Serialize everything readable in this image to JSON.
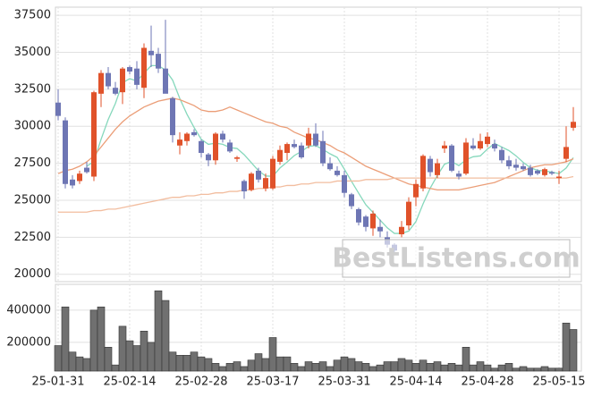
{
  "chart_data": [
    {
      "type": "candlestick",
      "open": [
        31600,
        30400,
        26400,
        26300,
        27200,
        26600,
        32200,
        33600,
        32600,
        32300,
        34000,
        33900,
        32600,
        35100,
        34900,
        33900,
        31900,
        28700,
        29000,
        29600,
        29000,
        28100,
        27700,
        29500,
        28900,
        27800,
        26300,
        25700,
        27000,
        25800,
        25800,
        27600,
        28200,
        28800,
        28700,
        28700,
        29500,
        29000,
        27500,
        27000,
        26700,
        25400,
        24400,
        23900,
        23100,
        23200,
        22500,
        22000,
        22700,
        23300,
        25200,
        25800,
        27800,
        26700,
        28500,
        28700,
        26800,
        26800,
        28700,
        28500,
        28800,
        28800,
        28400,
        27700,
        27400,
        27300,
        27200,
        27000,
        26700,
        26900,
        26500,
        27800,
        29900
      ],
      "high": [
        32500,
        30600,
        26700,
        27000,
        27600,
        32400,
        33800,
        34000,
        33000,
        34000,
        34100,
        34400,
        35600,
        36800,
        35300,
        37200,
        32000,
        29600,
        29600,
        29800,
        29100,
        28200,
        29600,
        29700,
        29100,
        28000,
        26400,
        26900,
        27200,
        26800,
        28000,
        28700,
        28900,
        29100,
        28900,
        29900,
        30200,
        29700,
        27900,
        27300,
        27000,
        25500,
        24500,
        24000,
        24300,
        23700,
        22900,
        22100,
        23600,
        25200,
        26400,
        28100,
        28000,
        27800,
        29000,
        28800,
        27000,
        29200,
        29200,
        29500,
        29600,
        29100,
        28600,
        28000,
        27800,
        27500,
        27400,
        27100,
        27200,
        27000,
        27000,
        30000,
        31300
      ],
      "low": [
        30400,
        25800,
        25800,
        26100,
        26800,
        26300,
        31300,
        32500,
        32100,
        31500,
        33500,
        32500,
        31900,
        34000,
        33600,
        32300,
        28900,
        28100,
        28700,
        29300,
        27900,
        27300,
        27400,
        28900,
        28200,
        27600,
        25100,
        25600,
        26200,
        25600,
        25700,
        27400,
        27700,
        28500,
        27800,
        28500,
        28600,
        27300,
        27000,
        26600,
        25200,
        24400,
        23300,
        22900,
        22600,
        22500,
        21800,
        21300,
        22500,
        23000,
        24600,
        25600,
        26600,
        26500,
        28200,
        26900,
        26400,
        26700,
        28400,
        28400,
        28600,
        28300,
        27500,
        27100,
        27000,
        27000,
        26600,
        26700,
        26600,
        26700,
        26100,
        27600,
        29700
      ],
      "close": [
        30700,
        26100,
        26000,
        26800,
        26900,
        32300,
        33600,
        32700,
        32200,
        33900,
        33700,
        32800,
        35300,
        34800,
        33900,
        32200,
        29400,
        29100,
        29500,
        29400,
        28200,
        27700,
        29500,
        29100,
        28300,
        27900,
        25600,
        26800,
        26400,
        26500,
        27800,
        28400,
        28800,
        28600,
        27900,
        29500,
        28700,
        27500,
        27100,
        26700,
        25500,
        24600,
        23500,
        23200,
        24100,
        22900,
        22000,
        21600,
        23200,
        24900,
        26100,
        28000,
        26900,
        27500,
        28700,
        27000,
        26600,
        28900,
        28500,
        29000,
        29300,
        28500,
        27700,
        27300,
        27200,
        27100,
        26700,
        26800,
        27100,
        26800,
        26600,
        28600,
        30300
      ],
      "up_color": "#e0522a",
      "down_color": "#6e76b4",
      "series": [
        {
          "color": "#86d8bc",
          "values": [
            null,
            null,
            null,
            null,
            27300,
            27620,
            29120,
            30460,
            31540,
            32940,
            33220,
            33060,
            33580,
            34100,
            34100,
            33800,
            33120,
            31880,
            30820,
            29920,
            29120,
            28780,
            28860,
            28780,
            28560,
            28500,
            28080,
            27540,
            27000,
            26640,
            26620,
            27180,
            27580,
            28020,
            28300,
            28640,
            28700,
            28440,
            28140,
            27900,
            27100,
            26280,
            25480,
            24700,
            24180,
            23660,
            23140,
            22760,
            22760,
            22920,
            23560,
            24760,
            25820,
            26680,
            27440,
            27620,
            27340,
            27740,
            27940,
            28000,
            28460,
            28840,
            28600,
            28360,
            28000,
            27560,
            27200,
            27020,
            26980,
            26900,
            26800,
            27180,
            27880
          ]
        },
        {
          "color": "#eb9e78",
          "values": [
            26800,
            27000,
            27100,
            27300,
            27600,
            28000,
            28600,
            29200,
            29800,
            30300,
            30700,
            31000,
            31300,
            31500,
            31700,
            31800,
            31900,
            31800,
            31600,
            31400,
            31100,
            31000,
            31000,
            31100,
            31300,
            31100,
            30900,
            30700,
            30500,
            30300,
            30200,
            30000,
            29900,
            29600,
            29400,
            29200,
            29100,
            28900,
            28700,
            28400,
            28200,
            27900,
            27600,
            27300,
            27100,
            26900,
            26700,
            26500,
            26300,
            26100,
            26000,
            25900,
            25800,
            25700,
            25700,
            25700,
            25700,
            25800,
            25900,
            26000,
            26100,
            26200,
            26400,
            26600,
            26800,
            27000,
            27200,
            27300,
            27400,
            27400,
            27500,
            27600,
            27800
          ]
        },
        {
          "color": "#f2bd9f",
          "values": [
            24200,
            24200,
            24200,
            24200,
            24200,
            24300,
            24300,
            24400,
            24400,
            24500,
            24600,
            24700,
            24800,
            24900,
            25000,
            25100,
            25200,
            25200,
            25300,
            25300,
            25400,
            25400,
            25500,
            25500,
            25600,
            25600,
            25700,
            25700,
            25800,
            25800,
            25900,
            25900,
            26000,
            26000,
            26100,
            26100,
            26200,
            26200,
            26200,
            26300,
            26300,
            26300,
            26300,
            26400,
            26400,
            26400,
            26400,
            26500,
            26500,
            26500,
            26500,
            26500,
            26500,
            26500,
            26500,
            26500,
            26500,
            26500,
            26500,
            26500,
            26500,
            26500,
            26500,
            26500,
            26500,
            26500,
            26500,
            26500,
            26500,
            26500,
            26500,
            26500,
            26600
          ]
        }
      ],
      "ylim": [
        19500,
        38050
      ],
      "yticks": [
        20000,
        22500,
        25000,
        27500,
        30000,
        32500,
        35000,
        37500
      ],
      "grid": true,
      "watermark": "BestListens.com"
    },
    {
      "type": "bar",
      "categories": [
        "25-01-31",
        null,
        null,
        null,
        null,
        null,
        null,
        null,
        null,
        null,
        "25-02-14",
        null,
        null,
        null,
        null,
        null,
        null,
        null,
        null,
        null,
        "25-02-28",
        null,
        null,
        null,
        null,
        null,
        null,
        null,
        null,
        null,
        "25-03-17",
        null,
        null,
        null,
        null,
        null,
        null,
        null,
        null,
        null,
        "25-03-31",
        null,
        null,
        null,
        null,
        null,
        null,
        null,
        null,
        null,
        "25-04-14",
        null,
        null,
        null,
        null,
        null,
        null,
        null,
        null,
        null,
        "25-04-28",
        null,
        null,
        null,
        null,
        null,
        null,
        null,
        null,
        null,
        "25-05-15",
        null,
        null
      ],
      "values": [
        180000,
        420000,
        140000,
        110000,
        100000,
        400000,
        420000,
        170000,
        60000,
        300000,
        210000,
        180000,
        270000,
        200000,
        520000,
        460000,
        140000,
        120000,
        120000,
        140000,
        110000,
        100000,
        70000,
        50000,
        70000,
        80000,
        50000,
        90000,
        130000,
        100000,
        230000,
        110000,
        110000,
        70000,
        50000,
        80000,
        70000,
        80000,
        50000,
        90000,
        110000,
        100000,
        80000,
        70000,
        50000,
        60000,
        80000,
        80000,
        100000,
        90000,
        70000,
        90000,
        70000,
        80000,
        60000,
        70000,
        60000,
        170000,
        60000,
        80000,
        60000,
        40000,
        60000,
        70000,
        40000,
        50000,
        40000,
        40000,
        50000,
        40000,
        40000,
        320000,
        280000
      ],
      "color": "#707070",
      "ylim": [
        22000,
        560000
      ],
      "yticks": [
        200000,
        400000
      ],
      "grid": true
    }
  ]
}
